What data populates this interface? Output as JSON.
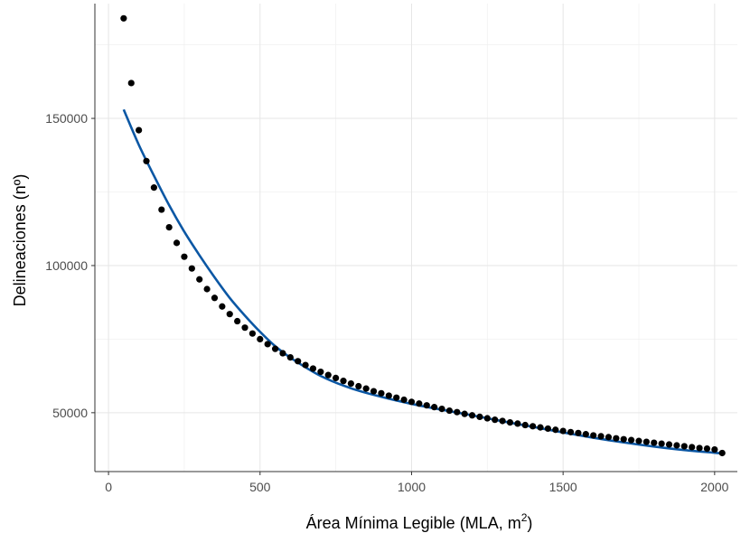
{
  "chart_data": {
    "type": "scatter",
    "title": "",
    "xlabel": "Área Mínima Legible (MLA, m²)",
    "xlabel_main": "Área Mínima Legible (MLA, m",
    "xlabel_sup": "2",
    "xlabel_close": ")",
    "ylabel": "Delineaciones (nº)",
    "xlim": [
      -45,
      2075
    ],
    "ylim": [
      30000,
      189000
    ],
    "x_ticks": [
      0,
      500,
      1000,
      1500,
      2000
    ],
    "x_tick_labels": [
      "0",
      "500",
      "1000",
      "1500",
      "2000"
    ],
    "y_ticks": [
      50000,
      100000,
      150000
    ],
    "y_tick_labels": [
      "50000",
      "100000",
      "150000"
    ],
    "grid": true,
    "legend": "none",
    "colors": {
      "points": "#000000",
      "fit_line": "#0b57a4",
      "grid": "#e6e6e6",
      "axis": "#333333"
    },
    "series": [
      {
        "kind": "points",
        "x": [
          50,
          75,
          100,
          125,
          150,
          175,
          200,
          225,
          250,
          275,
          300,
          325,
          350,
          375,
          400,
          425,
          450,
          475,
          500,
          525,
          550,
          575,
          600,
          625,
          650,
          675,
          700,
          725,
          750,
          775,
          800,
          825,
          850,
          875,
          900,
          925,
          950,
          975,
          1000,
          1025,
          1050,
          1075,
          1100,
          1125,
          1150,
          1175,
          1200,
          1225,
          1250,
          1275,
          1300,
          1325,
          1350,
          1375,
          1400,
          1425,
          1450,
          1475,
          1500,
          1525,
          1550,
          1575,
          1600,
          1625,
          1650,
          1675,
          1700,
          1725,
          1750,
          1775,
          1800,
          1825,
          1850,
          1875,
          1900,
          1925,
          1950,
          1975,
          2000,
          2025
        ],
        "y": [
          184000,
          162000,
          146000,
          135500,
          126500,
          119000,
          113000,
          107700,
          103000,
          99000,
          95300,
          92000,
          89000,
          86100,
          83500,
          81100,
          78900,
          76900,
          75000,
          73300,
          71700,
          70200,
          68800,
          67500,
          66200,
          65000,
          63900,
          62800,
          61800,
          60800,
          59900,
          59000,
          58200,
          57300,
          56600,
          55800,
          55100,
          54400,
          53700,
          53100,
          52500,
          51900,
          51300,
          50700,
          50200,
          49600,
          49100,
          48600,
          48100,
          47600,
          47200,
          46700,
          46300,
          45800,
          45400,
          45000,
          44600,
          44200,
          43800,
          43400,
          43100,
          42700,
          42300,
          42000,
          41700,
          41300,
          41000,
          40700,
          40400,
          40100,
          39800,
          39500,
          39200,
          38900,
          38600,
          38300,
          38000,
          37800,
          37500,
          36300
        ]
      },
      {
        "kind": "fit_line",
        "x": [
          50,
          100,
          150,
          200,
          250,
          300,
          350,
          400,
          450,
          500,
          550,
          600,
          700,
          800,
          900,
          1000,
          1100,
          1200,
          1300,
          1400,
          1500,
          1600,
          1700,
          1800,
          1900,
          2000,
          2025
        ],
        "y": [
          153000,
          141000,
          130500,
          120500,
          111500,
          103500,
          96000,
          89000,
          83000,
          77500,
          72600,
          68700,
          62500,
          58300,
          55400,
          53000,
          51000,
          49100,
          47100,
          45200,
          43300,
          41500,
          39900,
          38500,
          37300,
          36400,
          36200
        ]
      }
    ]
  }
}
